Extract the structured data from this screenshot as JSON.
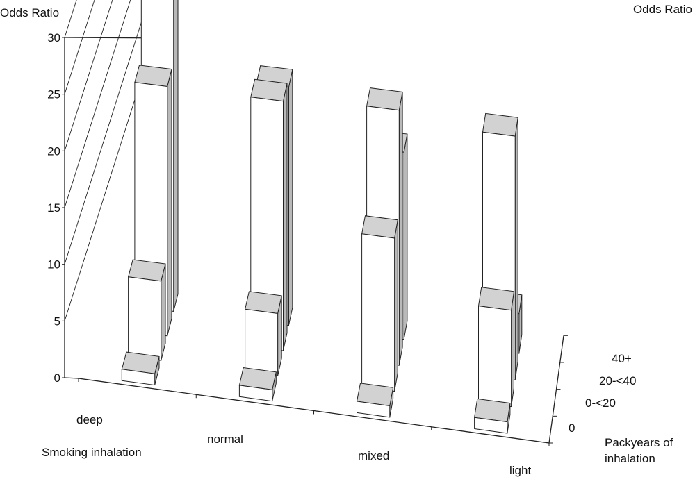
{
  "chart_data": {
    "type": "bar3d",
    "left_axis_label": "Odds Ratio",
    "right_axis_label": "Odds Ratio",
    "x_axis_label": "Smoking inhalation",
    "depth_axis_label": "Packyears of inhalation",
    "categories": [
      "deep",
      "normal",
      "mixed",
      "light"
    ],
    "series": [
      {
        "name": "0",
        "values": [
          1,
          1,
          1,
          1
        ]
      },
      {
        "name": "0-<20",
        "values": [
          7,
          5.5,
          13.5,
          8.5
        ]
      },
      {
        "name": "20-<40",
        "values": [
          22,
          22,
          22.5,
          21.5
        ]
      },
      {
        "name": "40+",
        "values": [
          28,
          21,
          16.5,
          3.5
        ]
      }
    ],
    "ylim": [
      0,
      30
    ],
    "ticks": [
      0,
      5,
      10,
      15,
      20,
      25,
      30
    ],
    "colors": {
      "face": "#ffffff",
      "side": "#b9b9b9",
      "top": "#d2d2d2",
      "edge": "#222222"
    }
  }
}
